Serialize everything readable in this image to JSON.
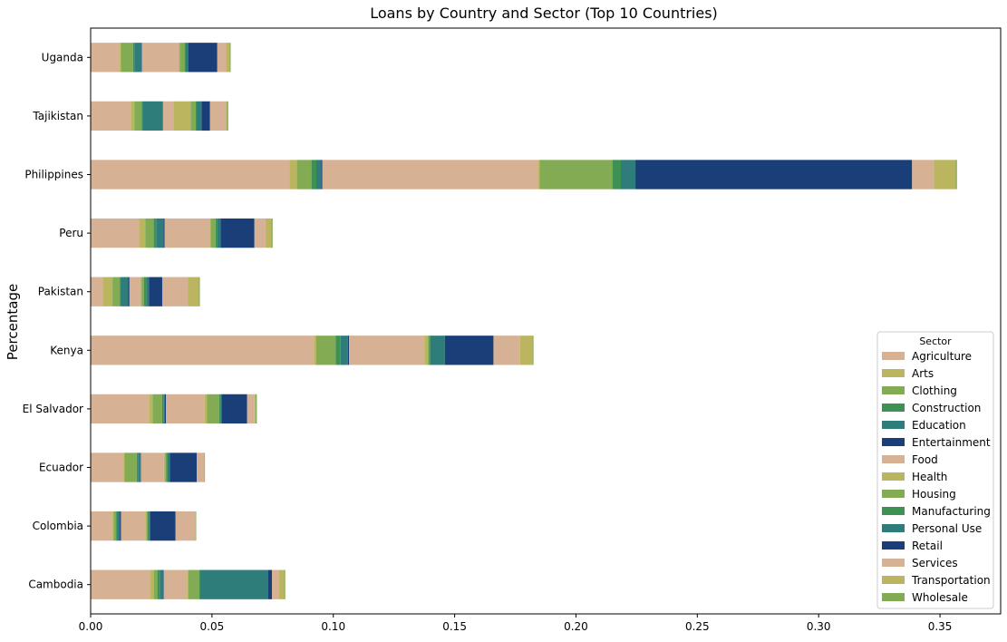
{
  "chart_data": {
    "type": "bar",
    "orientation": "horizontal",
    "stacked": true,
    "title": "Loans by Country and Sector (Top 10 Countries)",
    "xlabel": "",
    "ylabel": "Percentage",
    "xlim": [
      0,
      0.375
    ],
    "x_ticks": [
      0.0,
      0.05,
      0.1,
      0.15,
      0.2,
      0.25,
      0.3,
      0.35
    ],
    "x_tick_labels": [
      "0.00",
      "0.05",
      "0.10",
      "0.15",
      "0.20",
      "0.25",
      "0.30",
      "0.35"
    ],
    "grid": false,
    "legend_title": "Sector",
    "legend_position": "lower-right",
    "categories": [
      "Cambodia",
      "Colombia",
      "Ecuador",
      "El Salvador",
      "Kenya",
      "Pakistan",
      "Peru",
      "Philippines",
      "Tajikistan",
      "Uganda"
    ],
    "series": [
      {
        "name": "Agriculture",
        "color": "#d6b193",
        "values": [
          0.0245,
          0.009,
          0.0135,
          0.024,
          0.092,
          0.005,
          0.02,
          0.082,
          0.0165,
          0.012
        ]
      },
      {
        "name": "Arts",
        "color": "#bbb55f",
        "values": [
          0.0015,
          0.0005,
          0.0005,
          0.0015,
          0.001,
          0.004,
          0.0025,
          0.003,
          0.0015,
          0.0005
        ]
      },
      {
        "name": "Clothing",
        "color": "#82ab54",
        "values": [
          0.0015,
          0.001,
          0.005,
          0.004,
          0.008,
          0.003,
          0.0035,
          0.006,
          0.003,
          0.005
        ]
      },
      {
        "name": "Construction",
        "color": "#3d9152",
        "values": [
          0.001,
          0.0005,
          0.0005,
          0.0005,
          0.002,
          0.0005,
          0.001,
          0.002,
          0.0005,
          0.0005
        ]
      },
      {
        "name": "Education",
        "color": "#2e7d7a",
        "values": [
          0.0015,
          0.001,
          0.001,
          0.0005,
          0.003,
          0.003,
          0.003,
          0.002,
          0.008,
          0.003
        ]
      },
      {
        "name": "Entertainment",
        "color": "#1a3f78",
        "values": [
          0.0002,
          0.0005,
          0.0002,
          0.0005,
          0.0005,
          0.0005,
          0.0005,
          0.0005,
          0.0002,
          0.0002
        ]
      },
      {
        "name": "Food",
        "color": "#d6b193",
        "values": [
          0.0095,
          0.01,
          0.0095,
          0.016,
          0.031,
          0.0045,
          0.0185,
          0.089,
          0.0045,
          0.015
        ]
      },
      {
        "name": "Health",
        "color": "#bbb55f",
        "values": [
          0.0005,
          0.0005,
          0.0005,
          0.001,
          0.0015,
          0.0005,
          0.0005,
          0.0005,
          0.007,
          0.0005
        ]
      },
      {
        "name": "Housing",
        "color": "#82ab54",
        "values": [
          0.0045,
          0.0005,
          0.0005,
          0.005,
          0.0005,
          0.001,
          0.002,
          0.03,
          0.002,
          0.002
        ]
      },
      {
        "name": "Manufacturing",
        "color": "#3d9152",
        "values": [
          0.0005,
          0.0005,
          0.0005,
          0.0005,
          0.0005,
          0.001,
          0.0005,
          0.0035,
          0.0005,
          0.0005
        ]
      },
      {
        "name": "Personal Use",
        "color": "#2e7d7a",
        "values": [
          0.028,
          0.0005,
          0.001,
          0.0005,
          0.006,
          0.001,
          0.0015,
          0.006,
          0.002,
          0.001
        ]
      },
      {
        "name": "Retail",
        "color": "#1a3f78",
        "values": [
          0.0015,
          0.0105,
          0.011,
          0.0105,
          0.02,
          0.0055,
          0.014,
          0.114,
          0.0035,
          0.012
        ]
      },
      {
        "name": "Services",
        "color": "#d6b193",
        "values": [
          0.003,
          0.008,
          0.003,
          0.003,
          0.011,
          0.0105,
          0.0045,
          0.009,
          0.0065,
          0.0035
        ]
      },
      {
        "name": "Transportation",
        "color": "#bbb55f",
        "values": [
          0.002,
          0.0002,
          0.0002,
          0.0005,
          0.005,
          0.0045,
          0.0025,
          0.009,
          0.0005,
          0.0015
        ]
      },
      {
        "name": "Wholesale",
        "color": "#82ab54",
        "values": [
          0.0005,
          0.0003,
          0.0002,
          0.0005,
          0.0005,
          0.0005,
          0.0005,
          0.0005,
          0.0005,
          0.0005
        ]
      }
    ]
  }
}
